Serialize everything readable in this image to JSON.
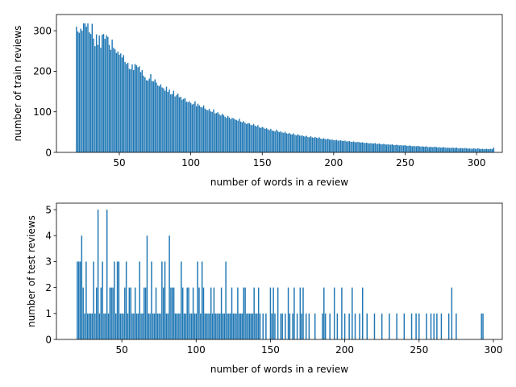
{
  "figure": {
    "bar_color": "#1f77b4",
    "background": "#ffffff"
  },
  "chart_data": [
    {
      "type": "bar",
      "title": "",
      "xlabel": "number of words in a review",
      "ylabel": "number of train reviews",
      "xlim": [
        6,
        318
      ],
      "ylim": [
        0,
        340
      ],
      "xticks": [
        50,
        100,
        150,
        200,
        250,
        300
      ],
      "yticks": [
        0,
        100,
        200,
        300
      ],
      "grid": false,
      "legend": "none",
      "x_start": 20,
      "values": [
        310,
        298,
        295,
        305,
        300,
        318,
        318,
        310,
        318,
        296,
        292,
        317,
        281,
        262,
        291,
        265,
        288,
        258,
        290,
        292,
        280,
        289,
        285,
        265,
        253,
        278,
        258,
        254,
        245,
        249,
        241,
        244,
        234,
        240,
        223,
        218,
        221,
        206,
        205,
        217,
        203,
        218,
        215,
        210,
        212,
        198,
        203,
        189,
        185,
        178,
        177,
        182,
        193,
        176,
        175,
        180,
        172,
        165,
        163,
        168,
        160,
        158,
        152,
        162,
        149,
        155,
        143,
        144,
        152,
        138,
        141,
        145,
        136,
        137,
        130,
        132,
        134,
        125,
        124,
        126,
        122,
        118,
        120,
        126,
        114,
        120,
        116,
        112,
        111,
        116,
        108,
        105,
        104,
        107,
        101,
        100,
        106,
        96,
        97,
        99,
        94,
        91,
        95,
        92,
        88,
        85,
        90,
        86,
        82,
        85,
        84,
        81,
        80,
        78,
        83,
        76,
        74,
        77,
        73,
        70,
        72,
        72,
        68,
        67,
        70,
        66,
        64,
        67,
        62,
        60,
        63,
        61,
        58,
        60,
        57,
        55,
        58,
        54,
        53,
        52,
        56,
        52,
        50,
        52,
        49,
        48,
        51,
        47,
        46,
        48,
        45,
        44,
        47,
        43,
        42,
        45,
        42,
        41,
        42,
        40,
        39,
        41,
        38,
        37,
        40,
        37,
        36,
        38,
        36,
        35,
        37,
        34,
        33,
        35,
        33,
        32,
        34,
        32,
        31,
        32,
        30,
        30,
        31,
        29,
        29,
        30,
        28,
        28,
        29,
        27,
        27,
        28,
        26,
        26,
        27,
        25,
        25,
        26,
        25,
        24,
        25,
        24,
        23,
        24,
        23,
        22,
        23,
        22,
        22,
        23,
        21,
        21,
        22,
        20,
        20,
        21,
        20,
        19,
        20,
        19,
        19,
        20,
        18,
        18,
        19,
        18,
        17,
        18,
        17,
        17,
        18,
        16,
        16,
        17,
        16,
        15,
        16,
        15,
        15,
        16,
        15,
        14,
        15,
        14,
        14,
        15,
        13,
        13,
        14,
        13,
        13,
        14,
        13,
        12,
        13,
        12,
        12,
        13,
        12,
        11,
        12,
        11,
        11,
        12,
        11,
        11,
        12,
        10,
        10,
        11,
        10,
        10,
        11,
        10,
        9,
        10,
        9,
        9,
        10,
        9,
        9,
        10,
        9,
        8,
        9,
        8,
        8,
        9,
        8,
        8,
        9,
        8,
        12
      ]
    },
    {
      "type": "bar",
      "title": "",
      "xlabel": "number of words in a review",
      "ylabel": "number of test reviews",
      "xlim": [
        6,
        306
      ],
      "ylim": [
        0,
        5.25
      ],
      "xticks": [
        50,
        100,
        150,
        200,
        250,
        300
      ],
      "yticks": [
        0,
        1,
        2,
        3,
        4,
        5
      ],
      "grid": false,
      "legend": "none",
      "x": [
        20,
        21,
        22,
        23,
        24,
        25,
        26,
        27,
        28,
        29,
        30,
        31,
        32,
        33,
        34,
        35,
        36,
        37,
        38,
        39,
        40,
        41,
        42,
        43,
        44,
        45,
        46,
        47,
        48,
        49,
        50,
        51,
        52,
        53,
        54,
        55,
        56,
        57,
        58,
        59,
        60,
        61,
        62,
        63,
        64,
        65,
        66,
        67,
        68,
        69,
        70,
        71,
        72,
        73,
        74,
        75,
        76,
        77,
        78,
        79,
        80,
        81,
        82,
        83,
        84,
        85,
        86,
        87,
        88,
        89,
        90,
        91,
        92,
        93,
        94,
        95,
        96,
        97,
        98,
        99,
        100,
        101,
        102,
        103,
        104,
        105,
        106,
        107,
        108,
        109,
        110,
        111,
        112,
        113,
        114,
        115,
        116,
        117,
        118,
        119,
        120,
        121,
        122,
        123,
        124,
        125,
        126,
        127,
        128,
        129,
        130,
        131,
        132,
        133,
        134,
        135,
        136,
        137,
        138,
        139,
        140,
        141,
        142,
        143,
        145,
        147,
        150,
        151,
        152,
        153,
        155,
        157,
        158,
        160,
        162,
        163,
        165,
        166,
        168,
        170,
        171,
        172,
        174,
        176,
        180,
        185,
        186,
        187,
        190,
        193,
        195,
        198,
        200,
        203,
        205,
        207,
        210,
        212,
        215,
        220,
        225,
        230,
        235,
        240,
        245,
        248,
        250,
        255,
        258,
        260,
        262,
        265,
        270,
        272,
        275,
        292,
        293
      ],
      "values": [
        3,
        3,
        3,
        4,
        2,
        1,
        3,
        1,
        1,
        1,
        1,
        3,
        1,
        2,
        5,
        1,
        2,
        3,
        1,
        1,
        5,
        1,
        2,
        2,
        2,
        3,
        1,
        3,
        3,
        1,
        1,
        1,
        2,
        3,
        1,
        2,
        2,
        1,
        1,
        2,
        1,
        1,
        3,
        1,
        1,
        2,
        2,
        4,
        1,
        1,
        3,
        1,
        1,
        2,
        1,
        1,
        1,
        3,
        2,
        3,
        1,
        1,
        4,
        2,
        2,
        2,
        1,
        1,
        1,
        1,
        3,
        2,
        1,
        1,
        2,
        2,
        1,
        1,
        2,
        1,
        1,
        3,
        2,
        1,
        3,
        2,
        1,
        1,
        1,
        1,
        2,
        1,
        2,
        1,
        1,
        1,
        1,
        2,
        1,
        1,
        3,
        1,
        1,
        1,
        2,
        1,
        1,
        1,
        2,
        1,
        1,
        1,
        2,
        2,
        1,
        1,
        1,
        1,
        1,
        2,
        1,
        1,
        2,
        1,
        1,
        1,
        2,
        1,
        2,
        1,
        2,
        1,
        1,
        1,
        2,
        1,
        1,
        2,
        1,
        2,
        1,
        2,
        1,
        1,
        1,
        1,
        2,
        1,
        1,
        2,
        1,
        2,
        1,
        1,
        2,
        1,
        1,
        2,
        1,
        1,
        1,
        1,
        1,
        1,
        1,
        1,
        1,
        1,
        1,
        1,
        1,
        1,
        1,
        2,
        1,
        1,
        1
      ]
    }
  ]
}
